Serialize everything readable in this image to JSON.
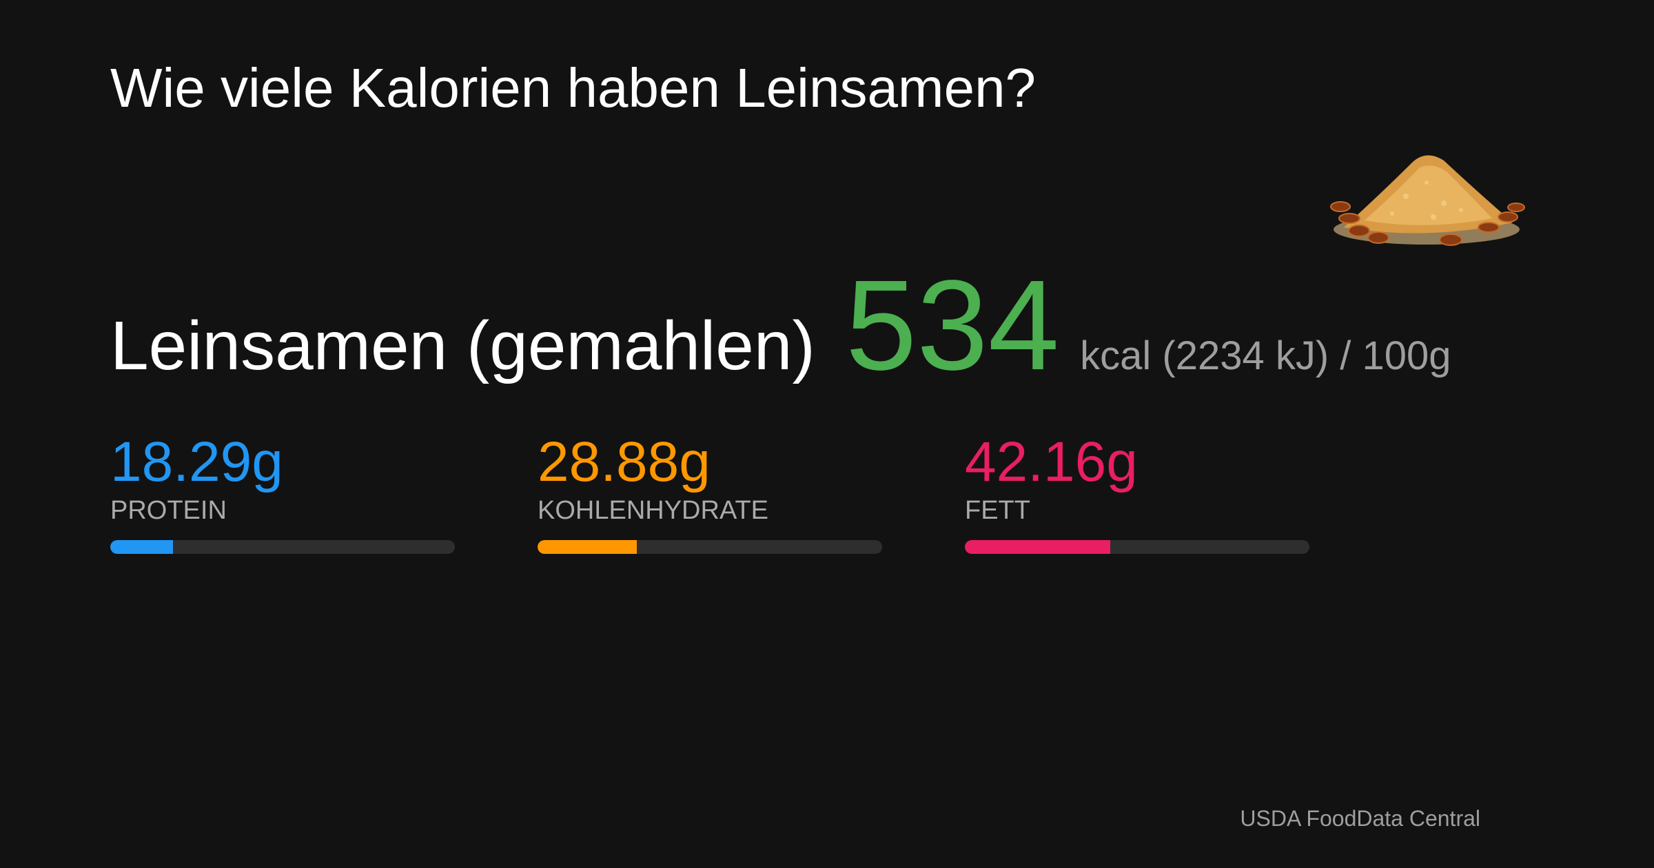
{
  "title": "Wie viele Kalorien haben Leinsamen?",
  "food": "Leinsamen (gemahlen)",
  "calories": {
    "value": 534,
    "unit_text": "kcal (2234 kJ) / 100g",
    "color": "#4caf50"
  },
  "bar_max": 100,
  "macros": [
    {
      "value": 18.29,
      "label": "18.29g",
      "name": "PROTEIN",
      "color": "#2196f3"
    },
    {
      "value": 28.88,
      "label": "28.88g",
      "name": "KOHLENHYDRATE",
      "color": "#ff9800"
    },
    {
      "value": 42.16,
      "label": "42.16g",
      "name": "FETT",
      "color": "#e91e63"
    }
  ],
  "source": "USDA FoodData Central"
}
